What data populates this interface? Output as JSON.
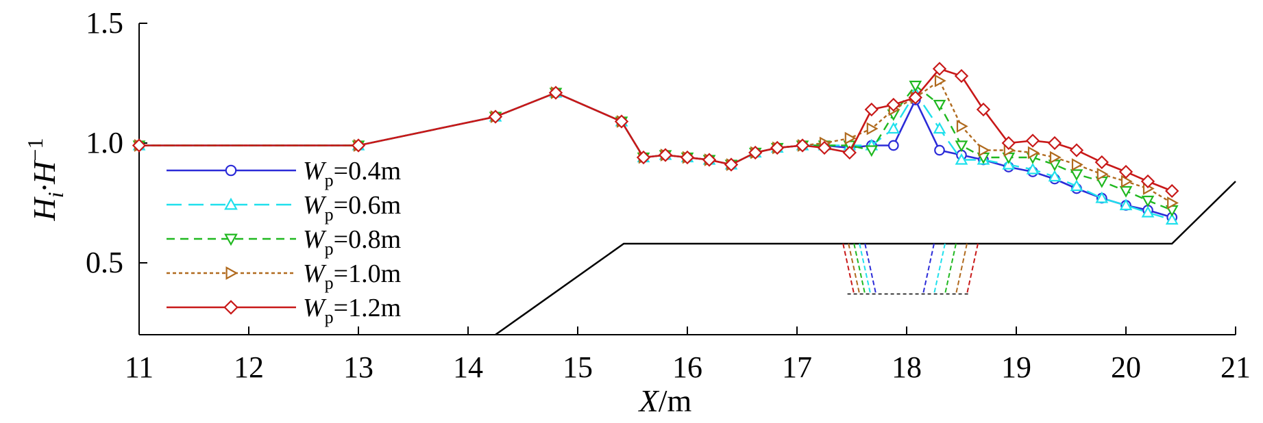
{
  "chart_data": {
    "type": "line",
    "xlabel": {
      "var": "X",
      "unit": "/m"
    },
    "ylabel": {
      "base": "H",
      "sub": "i",
      "mid": "·H",
      "sup": "−1"
    },
    "xlim": [
      11,
      21
    ],
    "ylim": [
      0.2,
      1.5
    ],
    "xticks": [
      11,
      12,
      13,
      14,
      15,
      16,
      17,
      18,
      19,
      20,
      21
    ],
    "xtick_labels": [
      "11",
      "12",
      "13",
      "14",
      "15",
      "16",
      "17",
      "18",
      "19",
      "20",
      "21"
    ],
    "yticks": [
      0.5,
      1.0,
      1.5
    ],
    "ytick_labels": [
      "0.5",
      "1.0",
      "1.5"
    ],
    "grid": false,
    "legend_position": "left",
    "series": [
      {
        "name": "Wp=0.4m",
        "label_var": "W",
        "label_sub": "p",
        "label_rest": "=0.4m",
        "color": "#2b2bd8",
        "dash": "solid",
        "marker": "circle",
        "x": [
          11,
          13,
          14.25,
          14.8,
          15.4,
          15.6,
          15.8,
          16.0,
          16.2,
          16.4,
          16.62,
          16.82,
          17.05,
          17.25,
          17.48,
          17.68,
          17.88,
          18.08,
          18.3,
          18.5,
          18.7,
          18.93,
          19.15,
          19.35,
          19.55,
          19.78,
          20.0,
          20.2,
          20.42
        ],
        "y": [
          0.99,
          0.99,
          1.11,
          1.21,
          1.09,
          0.94,
          0.95,
          0.94,
          0.93,
          0.91,
          0.96,
          0.98,
          0.99,
          0.99,
          0.98,
          0.99,
          0.99,
          1.18,
          0.97,
          0.95,
          0.93,
          0.9,
          0.88,
          0.85,
          0.81,
          0.77,
          0.74,
          0.72,
          0.69
        ]
      },
      {
        "name": "Wp=0.6m",
        "label_var": "W",
        "label_sub": "p",
        "label_rest": "=0.6m",
        "color": "#1fe0ec",
        "dash": "long-dash",
        "marker": "triangle-up",
        "x": [
          11,
          13,
          14.25,
          14.8,
          15.4,
          15.6,
          15.8,
          16.0,
          16.2,
          16.4,
          16.62,
          16.82,
          17.05,
          17.25,
          17.48,
          17.68,
          17.88,
          18.08,
          18.3,
          18.5,
          18.7,
          18.93,
          19.15,
          19.35,
          19.55,
          19.78,
          20.0,
          20.2,
          20.42
        ],
        "y": [
          0.99,
          0.99,
          1.11,
          1.21,
          1.09,
          0.94,
          0.95,
          0.94,
          0.93,
          0.91,
          0.96,
          0.98,
          0.99,
          0.99,
          0.99,
          0.99,
          1.06,
          1.21,
          1.06,
          0.93,
          0.93,
          0.91,
          0.89,
          0.86,
          0.82,
          0.77,
          0.74,
          0.71,
          0.68
        ]
      },
      {
        "name": "Wp=0.8m",
        "label_var": "W",
        "label_sub": "p",
        "label_rest": "=0.8m",
        "color": "#1fb81f",
        "dash": "dash",
        "marker": "triangle-down",
        "x": [
          11,
          13,
          14.25,
          14.8,
          15.4,
          15.6,
          15.8,
          16.0,
          16.2,
          16.4,
          16.62,
          16.82,
          17.05,
          17.25,
          17.48,
          17.68,
          17.88,
          18.08,
          18.3,
          18.5,
          18.7,
          18.93,
          19.15,
          19.35,
          19.55,
          19.78,
          20.0,
          20.2,
          20.42
        ],
        "y": [
          0.99,
          0.99,
          1.11,
          1.21,
          1.09,
          0.94,
          0.95,
          0.94,
          0.93,
          0.91,
          0.96,
          0.98,
          0.99,
          0.99,
          0.99,
          0.97,
          1.12,
          1.24,
          1.16,
          0.99,
          0.94,
          0.94,
          0.94,
          0.91,
          0.87,
          0.84,
          0.8,
          0.76,
          0.72
        ]
      },
      {
        "name": "Wp=1.0m",
        "label_var": "W",
        "label_sub": "p",
        "label_rest": "=1.0m",
        "color": "#b06a1e",
        "dash": "dot",
        "marker": "triangle-right",
        "x": [
          11,
          13,
          14.25,
          14.8,
          15.4,
          15.6,
          15.8,
          16.0,
          16.2,
          16.4,
          16.62,
          16.82,
          17.05,
          17.25,
          17.48,
          17.68,
          17.88,
          18.08,
          18.3,
          18.5,
          18.7,
          18.93,
          19.15,
          19.35,
          19.55,
          19.78,
          20.0,
          20.2,
          20.42
        ],
        "y": [
          0.99,
          0.99,
          1.11,
          1.21,
          1.09,
          0.94,
          0.95,
          0.94,
          0.93,
          0.91,
          0.96,
          0.98,
          0.99,
          1.0,
          1.02,
          1.06,
          1.14,
          1.19,
          1.26,
          1.07,
          0.97,
          0.97,
          0.96,
          0.94,
          0.91,
          0.87,
          0.84,
          0.81,
          0.75
        ]
      },
      {
        "name": "Wp=1.2m",
        "label_var": "W",
        "label_sub": "p",
        "label_rest": "=1.2m",
        "color": "#c81818",
        "dash": "solid",
        "marker": "diamond",
        "x": [
          11,
          13,
          14.25,
          14.8,
          15.4,
          15.6,
          15.8,
          16.0,
          16.2,
          16.4,
          16.62,
          16.82,
          17.05,
          17.25,
          17.48,
          17.68,
          17.88,
          18.08,
          18.3,
          18.5,
          18.7,
          18.93,
          19.15,
          19.35,
          19.55,
          19.78,
          20.0,
          20.2,
          20.42
        ],
        "y": [
          0.99,
          0.99,
          1.11,
          1.21,
          1.09,
          0.94,
          0.95,
          0.94,
          0.93,
          0.91,
          0.96,
          0.98,
          0.99,
          0.98,
          0.96,
          1.14,
          1.16,
          1.19,
          1.31,
          1.28,
          1.14,
          1.0,
          1.01,
          1.0,
          0.97,
          0.92,
          0.88,
          0.84,
          0.8
        ]
      }
    ],
    "profile": {
      "color": "#000000",
      "x": [
        14.25,
        15.42,
        20.42,
        21.0
      ],
      "y": [
        0.2,
        0.58,
        0.58,
        0.84
      ]
    },
    "trenches": [
      {
        "color": "#2b2bd8",
        "x": [
          17.62,
          17.72,
          17.92,
          18.1,
          18.25,
          18.15
        ]
      },
      {
        "color": "#1fe0ec",
        "x": [
          17.57,
          17.67,
          17.82,
          18.2,
          18.35,
          18.25
        ]
      },
      {
        "color": "#1fb81f",
        "x": [
          17.52,
          17.62,
          17.72,
          18.3,
          18.45,
          18.35
        ]
      },
      {
        "color": "#b06a1e",
        "x": [
          17.47,
          17.57,
          17.62,
          18.4,
          18.55,
          18.45
        ]
      },
      {
        "color": "#c81818",
        "x": [
          17.42,
          17.52,
          17.52,
          18.5,
          18.65,
          18.55
        ]
      }
    ],
    "trench_levels": {
      "top": 0.58,
      "bottom": 0.37,
      "x_min": 17.36,
      "x_max": 18.66
    }
  }
}
